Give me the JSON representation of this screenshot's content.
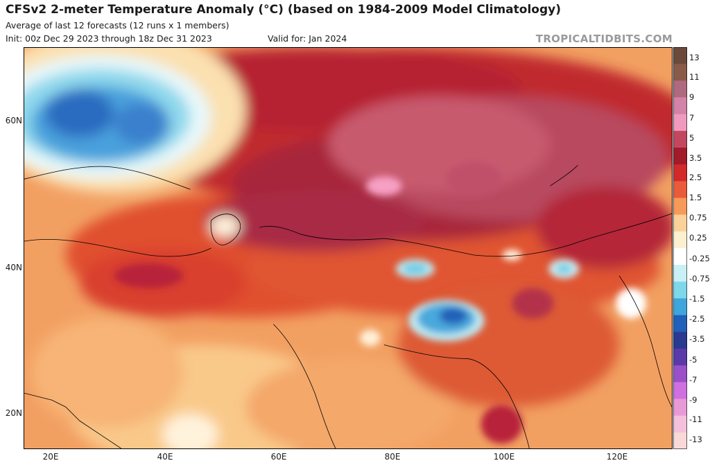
{
  "header": {
    "title": "CFSv2 2-meter Temperature Anomaly (°C) (based on 1984-2009 Model Climatology)",
    "subtitle": "Average of last 12 forecasts (12 runs x 1 members)",
    "init": "Init: 00z Dec 29 2023 through 18z Dec 31 2023",
    "valid": "Valid for: Jan 2024",
    "brand": "TROPICALTIDBITS.COM"
  },
  "map": {
    "lat_labels": [
      "60N",
      "40N",
      "20N"
    ],
    "lon_labels": [
      "20E",
      "40E",
      "60E",
      "80E",
      "100E",
      "120E"
    ]
  },
  "colorbar": {
    "labels": [
      "13",
      "11",
      "9",
      "7",
      "5",
      "3.5",
      "2.5",
      "1.5",
      "0.75",
      "0.25",
      "-0.25",
      "-0.75",
      "-1.5",
      "-2.5",
      "-3.5",
      "-5",
      "-7",
      "-9",
      "-11",
      "-13"
    ],
    "colors": [
      "#6b4a3c",
      "#8a5a4a",
      "#b06a80",
      "#d483a8",
      "#f09ac0",
      "#c2485f",
      "#a21b2b",
      "#d22a2a",
      "#ea5b3b",
      "#f69a5a",
      "#fbd19a",
      "#fbf0d0",
      "#ffffff",
      "#c8f0f5",
      "#7fd7ea",
      "#3fa6db",
      "#2060b8",
      "#2a3a90",
      "#5a3aa8",
      "#9a50c8",
      "#d070e0",
      "#e89ad6",
      "#f4c0dc",
      "#f9d8d8"
    ]
  }
}
